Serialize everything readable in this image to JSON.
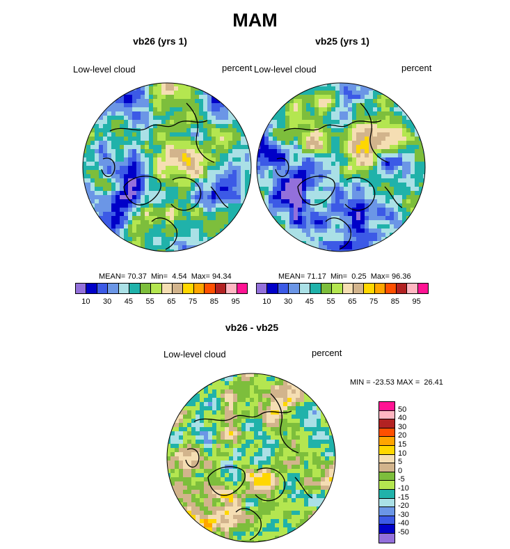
{
  "header": {
    "title": "MAM"
  },
  "colors": {
    "abs_levels": [
      "#9370DB",
      "#0000C8",
      "#3C5AE6",
      "#6B96E6",
      "#AAE0E6",
      "#20B2AA",
      "#7DBE3C",
      "#B4E650",
      "#F5DEB3",
      "#D2B48C",
      "#FFD700",
      "#FFA500",
      "#FF5000",
      "#B22222",
      "#FFB6C1",
      "#FF1493"
    ],
    "diff_levels": [
      "#FF1493",
      "#FFB6C1",
      "#B22222",
      "#FF5000",
      "#FFA500",
      "#FFD700",
      "#F5DEB3",
      "#D2B48C",
      "#7DBE3C",
      "#B4E650",
      "#20B2AA",
      "#AAE0E6",
      "#6B96E6",
      "#3C5AE6",
      "#0000C8",
      "#9370DB"
    ]
  },
  "chart_data": [
    {
      "type": "heatmap",
      "title": "vb26 (yrs 1)",
      "left_label": "Low-level cloud",
      "right_label": "percent",
      "stats": {
        "mean_label": "MEAN=",
        "mean": "70.37",
        "min_label": "Min=",
        "min": "4.54",
        "max_label": "Max=",
        "max": "94.34"
      },
      "colorbar_ticks": [
        "10",
        "30",
        "45",
        "55",
        "65",
        "75",
        "85",
        "95"
      ]
    },
    {
      "type": "heatmap",
      "title": "vb25 (yrs 1)",
      "left_label": "Low-level cloud",
      "right_label": "percent",
      "stats": {
        "mean_label": "MEAN=",
        "mean": "71.17",
        "min_label": "Min=",
        "min": "0.25",
        "max_label": "Max=",
        "max": "96.36"
      },
      "colorbar_ticks": [
        "10",
        "30",
        "45",
        "55",
        "65",
        "75",
        "85",
        "95"
      ]
    },
    {
      "type": "heatmap",
      "title": "vb26 - vb25",
      "left_label": "Low-level cloud",
      "right_label": "percent",
      "range_text": "MIN = -23.53 MAX =  26.41",
      "colorbar_ticks": [
        "50",
        "40",
        "30",
        "20",
        "15",
        "10",
        "5",
        "0",
        "-5",
        "-10",
        "-15",
        "-20",
        "-30",
        "-40",
        "-50"
      ]
    }
  ]
}
